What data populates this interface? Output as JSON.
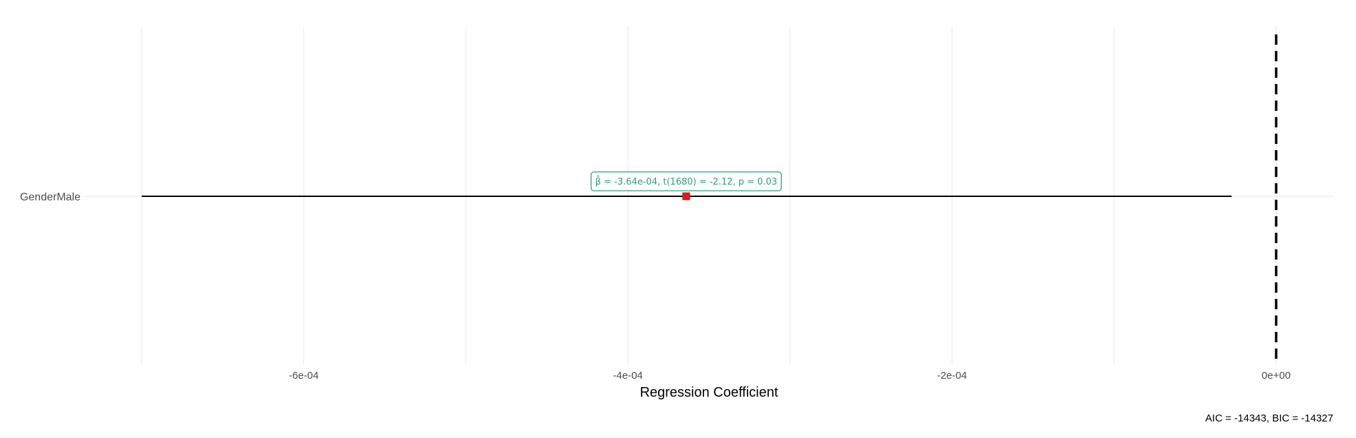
{
  "chart_data": {
    "type": "scatter",
    "xlabel": "Regression Coefficient",
    "xlim": [
      -0.0007,
      3.5e-05
    ],
    "x_ticks": [
      -0.0006,
      -0.0004,
      -0.0002,
      0.0
    ],
    "x_tick_labels": [
      "-6e-04",
      "-4e-04",
      "-2e-04",
      "0e+00"
    ],
    "grid": true,
    "reference_line": 0,
    "categories": [
      "GenderMale"
    ],
    "estimates": [
      {
        "term": "GenderMale",
        "estimate": -0.000364,
        "conf_low": -0.0007,
        "conf_high": -2.75e-05,
        "label": "β̂ = -3.64e-04, t(1680) = -2.12, p = 0.03"
      }
    ],
    "caption": "AIC = -14343, BIC = -14327",
    "colors": {
      "point": "#e31a1c",
      "label_border": "#2e9e7d",
      "label_text": "#2e9e7d",
      "errorbar": "#000000",
      "gridline": "#ebebeb"
    }
  }
}
